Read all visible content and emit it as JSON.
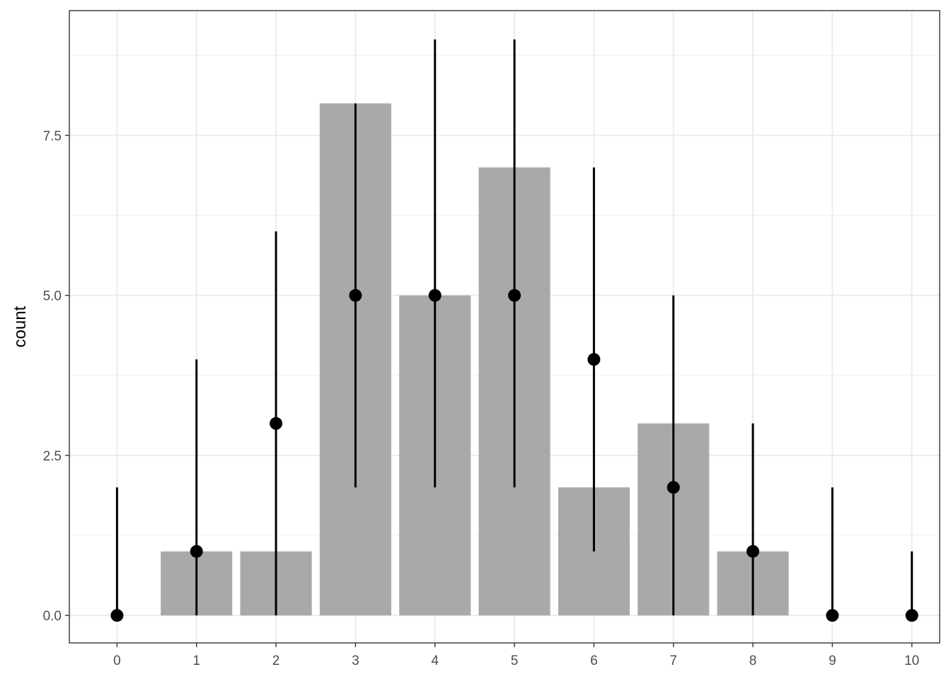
{
  "chart_data": {
    "type": "bar",
    "title": "",
    "xlabel": "",
    "ylabel": "count",
    "x": [
      0,
      1,
      2,
      3,
      4,
      5,
      6,
      7,
      8,
      9,
      10
    ],
    "xlim": [
      -0.6,
      10.35
    ],
    "ylim": [
      -0.43,
      9.45
    ],
    "y_ticks": [
      0.0,
      2.5,
      5.0,
      7.5
    ],
    "y_tick_labels": [
      "0.0",
      "2.5",
      "5.0",
      "7.5"
    ],
    "x_tick_labels": [
      "0",
      "1",
      "2",
      "3",
      "4",
      "5",
      "6",
      "7",
      "8",
      "9",
      "10"
    ],
    "grid": true,
    "series": [
      {
        "type": "bar",
        "values": [
          0,
          1,
          1,
          8,
          5,
          7,
          2,
          3,
          1,
          0,
          0
        ],
        "color": "#a9a9a9"
      },
      {
        "type": "pointrange",
        "points": [
          0,
          1,
          3,
          5,
          5,
          5,
          4,
          2,
          1,
          0,
          0
        ],
        "lower": [
          0,
          0,
          0,
          2,
          2,
          2,
          1,
          0,
          0,
          0,
          0
        ],
        "upper": [
          2,
          4,
          6,
          8,
          9,
          9,
          7,
          5,
          3,
          2,
          1
        ],
        "color": "#000000"
      }
    ]
  }
}
